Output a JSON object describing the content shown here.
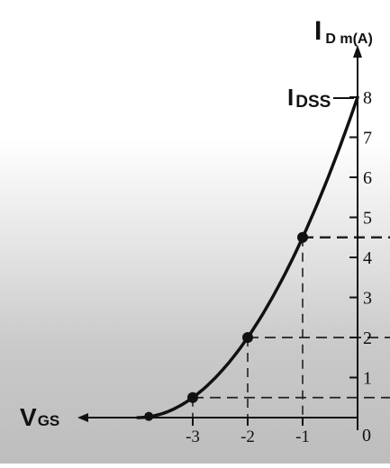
{
  "chart_data": {
    "type": "line",
    "title": "",
    "ylabel_main": "I",
    "ylabel_sub": "D m(A)",
    "xlabel_main": "V",
    "xlabel_sub": "GS",
    "idss_main": "I",
    "idss_sub": "DSS",
    "xlim": [
      -4.0,
      0
    ],
    "ylim": [
      0,
      8
    ],
    "x_ticks": [
      {
        "value": -3,
        "label": "-3"
      },
      {
        "value": -2,
        "label": "-2"
      },
      {
        "value": -1,
        "label": "-1"
      }
    ],
    "origin_label": "0",
    "y_ticks": [
      {
        "value": 1,
        "label": "1"
      },
      {
        "value": 2,
        "label": "2"
      },
      {
        "value": 3,
        "label": "3"
      },
      {
        "value": 4,
        "label": "4"
      },
      {
        "value": 5,
        "label": "5"
      },
      {
        "value": 6,
        "label": "6"
      },
      {
        "value": 7,
        "label": "7"
      },
      {
        "value": 8,
        "label": "8"
      }
    ],
    "series": [
      {
        "x": [
          -4.0,
          -3.8,
          -3.5,
          -3.0,
          -2.5,
          -2.0,
          -1.5,
          -1.0,
          -0.5,
          0
        ],
        "y": [
          0,
          0.03,
          0.13,
          0.5,
          1.12,
          2.0,
          3.13,
          4.5,
          6.13,
          8.0
        ]
      }
    ],
    "marked_points": [
      {
        "x": -3.8,
        "y": 0.03
      },
      {
        "x": -3,
        "y": 0.5
      },
      {
        "x": -2,
        "y": 2
      },
      {
        "x": -1,
        "y": 4.5
      }
    ],
    "dashed_guides": [
      {
        "x": -3,
        "y": 0.5
      },
      {
        "x": -2,
        "y": 2
      },
      {
        "x": -1,
        "y": 4.5
      }
    ],
    "colors": {
      "line": "#111111",
      "background_top": "#ffffff",
      "background_bottom": "#bdbdbd"
    }
  }
}
